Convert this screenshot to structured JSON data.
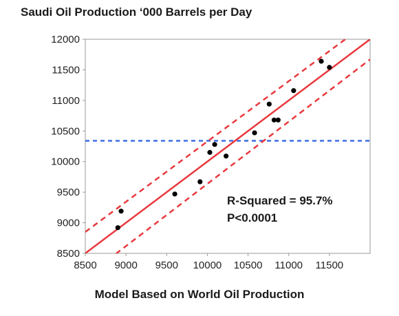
{
  "chart_data": {
    "type": "scatter",
    "title": "Saudi Oil Production ‘000 Barrels per Day",
    "xlabel": "Model Based on World Oil Production",
    "ylabel": "",
    "xlim": [
      8500,
      12000
    ],
    "ylim": [
      8500,
      12000
    ],
    "x_ticks": [
      8500,
      9000,
      9500,
      10000,
      10500,
      11000,
      11500
    ],
    "y_ticks": [
      8500,
      9000,
      9500,
      10000,
      10500,
      11000,
      11500,
      12000
    ],
    "grid": false,
    "points": [
      {
        "x": 8900,
        "y": 8920
      },
      {
        "x": 8940,
        "y": 9190
      },
      {
        "x": 9600,
        "y": 9470
      },
      {
        "x": 9910,
        "y": 9670
      },
      {
        "x": 10030,
        "y": 10150
      },
      {
        "x": 10090,
        "y": 10280
      },
      {
        "x": 10230,
        "y": 10090
      },
      {
        "x": 10580,
        "y": 10470
      },
      {
        "x": 10760,
        "y": 10940
      },
      {
        "x": 10820,
        "y": 10680
      },
      {
        "x": 10870,
        "y": 10680
      },
      {
        "x": 11060,
        "y": 11160
      },
      {
        "x": 11400,
        "y": 11640
      },
      {
        "x": 11500,
        "y": 11540
      }
    ],
    "fit_line": [
      {
        "x": 8500,
        "y": 8500
      },
      {
        "x": 12000,
        "y": 12000
      }
    ],
    "upper_band": [
      {
        "x": 8500,
        "y": 8850
      },
      {
        "x": 12000,
        "y": 12300
      }
    ],
    "lower_band": [
      {
        "x": 8500,
        "y": 8110
      },
      {
        "x": 12000,
        "y": 11670
      }
    ],
    "mean_line_y": 10340,
    "colors": {
      "fit": "#e8383d",
      "band": "#e8383d",
      "mean": "#3b6fe0",
      "points": "#000000"
    },
    "annotations": [
      "R-Squared = 95.7%",
      "P<0.0001"
    ]
  }
}
